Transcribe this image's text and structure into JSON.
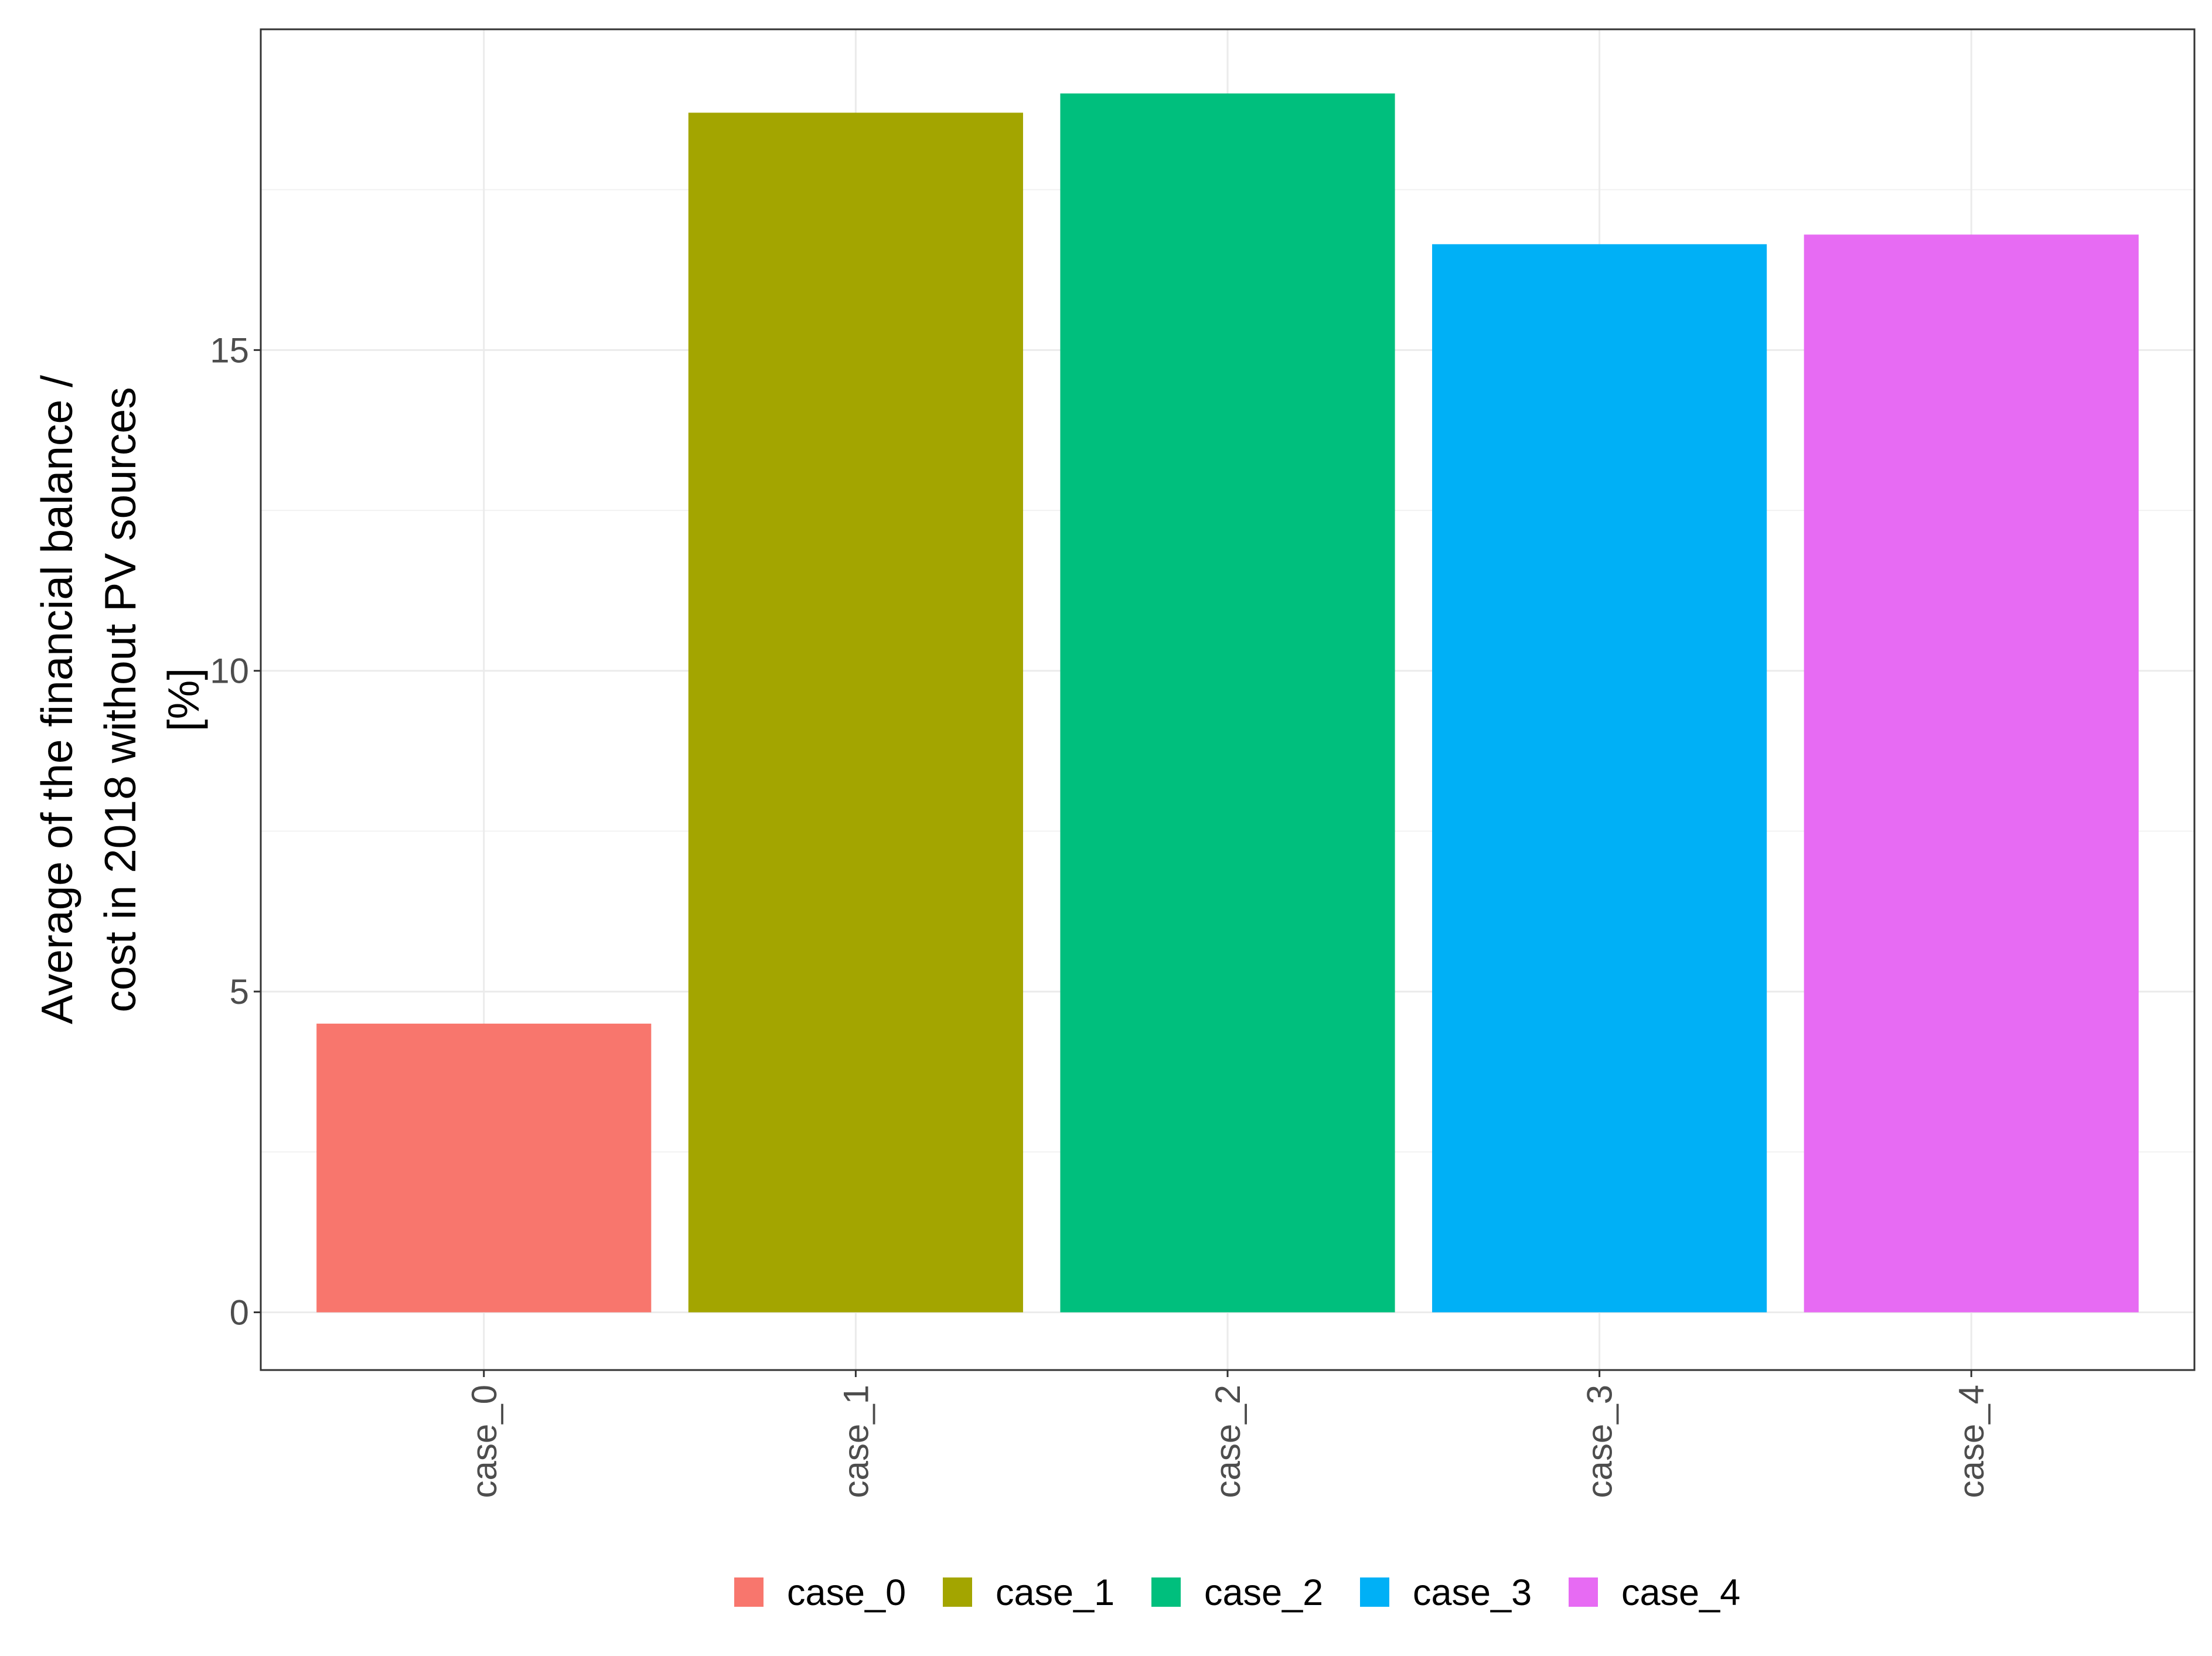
{
  "chart_data": {
    "type": "bar",
    "categories": [
      "case_0",
      "case_1",
      "case_2",
      "case_3",
      "case_4"
    ],
    "values": [
      4.5,
      18.7,
      19.0,
      16.65,
      16.8
    ],
    "colors": [
      "#F8766D",
      "#A3A500",
      "#00BF7D",
      "#00B0F6",
      "#E76BF3"
    ],
    "title": "",
    "xlabel": "",
    "ylabel_lines": [
      "Average of the financial balance /",
      "cost in 2018 without PV sources",
      "[%]"
    ],
    "ylim": [
      -0.9,
      20.0
    ],
    "yticks": [
      0,
      5,
      10,
      15
    ],
    "grid": true,
    "legend": {
      "position": "bottom",
      "entries": [
        "case_0",
        "case_1",
        "case_2",
        "case_3",
        "case_4"
      ]
    }
  }
}
